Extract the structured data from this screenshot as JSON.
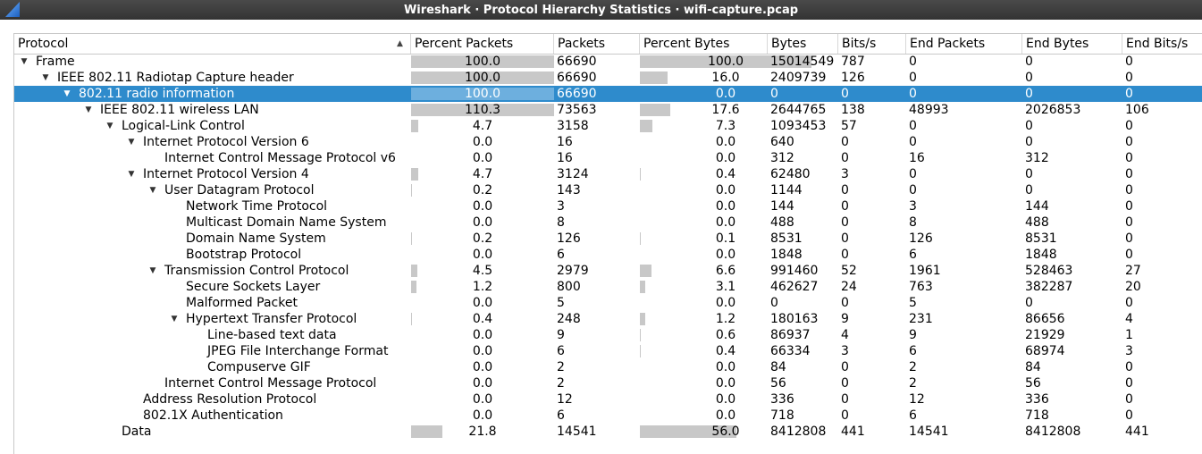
{
  "window": {
    "title": "Wireshark · Protocol Hierarchy Statistics · wifi-capture.pcap"
  },
  "columns": [
    "Protocol",
    "Percent Packets",
    "Packets",
    "Percent Bytes",
    "Bytes",
    "Bits/s",
    "End Packets",
    "End Bytes",
    "End Bits/s"
  ],
  "sort": {
    "column": "Protocol",
    "direction": "ascending"
  },
  "colors": {
    "selection": "#2e8bcc",
    "bar": "#c8c8c8",
    "title_bar": "#3c3c3c"
  },
  "rows": [
    {
      "protocol": "Frame",
      "depth": 0,
      "expander": "▼",
      "percent_packets": "100.0",
      "packets": "66690",
      "percent_bytes": "100.0",
      "bytes": "15014549",
      "bits_s": "787",
      "end_packets": "0",
      "end_bytes": "0",
      "end_bits_s": "0",
      "selected": false
    },
    {
      "protocol": "IEEE 802.11 Radiotap Capture header",
      "depth": 1,
      "expander": "▼",
      "percent_packets": "100.0",
      "packets": "66690",
      "percent_bytes": "16.0",
      "bytes": "2409739",
      "bits_s": "126",
      "end_packets": "0",
      "end_bytes": "0",
      "end_bits_s": "0",
      "selected": false
    },
    {
      "protocol": "802.11 radio information",
      "depth": 2,
      "expander": "▼",
      "percent_packets": "100.0",
      "packets": "66690",
      "percent_bytes": "0.0",
      "bytes": "0",
      "bits_s": "0",
      "end_packets": "0",
      "end_bytes": "0",
      "end_bits_s": "0",
      "selected": true
    },
    {
      "protocol": "IEEE 802.11 wireless LAN",
      "depth": 3,
      "expander": "▼",
      "percent_packets": "110.3",
      "packets": "73563",
      "percent_bytes": "17.6",
      "bytes": "2644765",
      "bits_s": "138",
      "end_packets": "48993",
      "end_bytes": "2026853",
      "end_bits_s": "106",
      "selected": false
    },
    {
      "protocol": "Logical-Link Control",
      "depth": 4,
      "expander": "▼",
      "percent_packets": "4.7",
      "packets": "3158",
      "percent_bytes": "7.3",
      "bytes": "1093453",
      "bits_s": "57",
      "end_packets": "0",
      "end_bytes": "0",
      "end_bits_s": "0",
      "selected": false
    },
    {
      "protocol": "Internet Protocol Version 6",
      "depth": 5,
      "expander": "▼",
      "percent_packets": "0.0",
      "packets": "16",
      "percent_bytes": "0.0",
      "bytes": "640",
      "bits_s": "0",
      "end_packets": "0",
      "end_bytes": "0",
      "end_bits_s": "0",
      "selected": false
    },
    {
      "protocol": "Internet Control Message Protocol v6",
      "depth": 6,
      "expander": "",
      "percent_packets": "0.0",
      "packets": "16",
      "percent_bytes": "0.0",
      "bytes": "312",
      "bits_s": "0",
      "end_packets": "16",
      "end_bytes": "312",
      "end_bits_s": "0",
      "selected": false
    },
    {
      "protocol": "Internet Protocol Version 4",
      "depth": 5,
      "expander": "▼",
      "percent_packets": "4.7",
      "packets": "3124",
      "percent_bytes": "0.4",
      "bytes": "62480",
      "bits_s": "3",
      "end_packets": "0",
      "end_bytes": "0",
      "end_bits_s": "0",
      "selected": false
    },
    {
      "protocol": "User Datagram Protocol",
      "depth": 6,
      "expander": "▼",
      "percent_packets": "0.2",
      "packets": "143",
      "percent_bytes": "0.0",
      "bytes": "1144",
      "bits_s": "0",
      "end_packets": "0",
      "end_bytes": "0",
      "end_bits_s": "0",
      "selected": false
    },
    {
      "protocol": "Network Time Protocol",
      "depth": 7,
      "expander": "",
      "percent_packets": "0.0",
      "packets": "3",
      "percent_bytes": "0.0",
      "bytes": "144",
      "bits_s": "0",
      "end_packets": "3",
      "end_bytes": "144",
      "end_bits_s": "0",
      "selected": false
    },
    {
      "protocol": "Multicast Domain Name System",
      "depth": 7,
      "expander": "",
      "percent_packets": "0.0",
      "packets": "8",
      "percent_bytes": "0.0",
      "bytes": "488",
      "bits_s": "0",
      "end_packets": "8",
      "end_bytes": "488",
      "end_bits_s": "0",
      "selected": false
    },
    {
      "protocol": "Domain Name System",
      "depth": 7,
      "expander": "",
      "percent_packets": "0.2",
      "packets": "126",
      "percent_bytes": "0.1",
      "bytes": "8531",
      "bits_s": "0",
      "end_packets": "126",
      "end_bytes": "8531",
      "end_bits_s": "0",
      "selected": false
    },
    {
      "protocol": "Bootstrap Protocol",
      "depth": 7,
      "expander": "",
      "percent_packets": "0.0",
      "packets": "6",
      "percent_bytes": "0.0",
      "bytes": "1848",
      "bits_s": "0",
      "end_packets": "6",
      "end_bytes": "1848",
      "end_bits_s": "0",
      "selected": false
    },
    {
      "protocol": "Transmission Control Protocol",
      "depth": 6,
      "expander": "▼",
      "percent_packets": "4.5",
      "packets": "2979",
      "percent_bytes": "6.6",
      "bytes": "991460",
      "bits_s": "52",
      "end_packets": "1961",
      "end_bytes": "528463",
      "end_bits_s": "27",
      "selected": false
    },
    {
      "protocol": "Secure Sockets Layer",
      "depth": 7,
      "expander": "",
      "percent_packets": "1.2",
      "packets": "800",
      "percent_bytes": "3.1",
      "bytes": "462627",
      "bits_s": "24",
      "end_packets": "763",
      "end_bytes": "382287",
      "end_bits_s": "20",
      "selected": false
    },
    {
      "protocol": "Malformed Packet",
      "depth": 7,
      "expander": "",
      "percent_packets": "0.0",
      "packets": "5",
      "percent_bytes": "0.0",
      "bytes": "0",
      "bits_s": "0",
      "end_packets": "5",
      "end_bytes": "0",
      "end_bits_s": "0",
      "selected": false
    },
    {
      "protocol": "Hypertext Transfer Protocol",
      "depth": 7,
      "expander": "▼",
      "percent_packets": "0.4",
      "packets": "248",
      "percent_bytes": "1.2",
      "bytes": "180163",
      "bits_s": "9",
      "end_packets": "231",
      "end_bytes": "86656",
      "end_bits_s": "4",
      "selected": false
    },
    {
      "protocol": "Line-based text data",
      "depth": 8,
      "expander": "",
      "percent_packets": "0.0",
      "packets": "9",
      "percent_bytes": "0.6",
      "bytes": "86937",
      "bits_s": "4",
      "end_packets": "9",
      "end_bytes": "21929",
      "end_bits_s": "1",
      "selected": false
    },
    {
      "protocol": "JPEG File Interchange Format",
      "depth": 8,
      "expander": "",
      "percent_packets": "0.0",
      "packets": "6",
      "percent_bytes": "0.4",
      "bytes": "66334",
      "bits_s": "3",
      "end_packets": "6",
      "end_bytes": "68974",
      "end_bits_s": "3",
      "selected": false
    },
    {
      "protocol": "Compuserve GIF",
      "depth": 8,
      "expander": "",
      "percent_packets": "0.0",
      "packets": "2",
      "percent_bytes": "0.0",
      "bytes": "84",
      "bits_s": "0",
      "end_packets": "2",
      "end_bytes": "84",
      "end_bits_s": "0",
      "selected": false
    },
    {
      "protocol": "Internet Control Message Protocol",
      "depth": 6,
      "expander": "",
      "percent_packets": "0.0",
      "packets": "2",
      "percent_bytes": "0.0",
      "bytes": "56",
      "bits_s": "0",
      "end_packets": "2",
      "end_bytes": "56",
      "end_bits_s": "0",
      "selected": false
    },
    {
      "protocol": "Address Resolution Protocol",
      "depth": 5,
      "expander": "",
      "percent_packets": "0.0",
      "packets": "12",
      "percent_bytes": "0.0",
      "bytes": "336",
      "bits_s": "0",
      "end_packets": "12",
      "end_bytes": "336",
      "end_bits_s": "0",
      "selected": false
    },
    {
      "protocol": "802.1X Authentication",
      "depth": 5,
      "expander": "",
      "percent_packets": "0.0",
      "packets": "6",
      "percent_bytes": "0.0",
      "bytes": "718",
      "bits_s": "0",
      "end_packets": "6",
      "end_bytes": "718",
      "end_bits_s": "0",
      "selected": false
    },
    {
      "protocol": "Data",
      "depth": 4,
      "expander": "",
      "percent_packets": "21.8",
      "packets": "14541",
      "percent_bytes": "56.0",
      "bytes": "8412808",
      "bits_s": "441",
      "end_packets": "14541",
      "end_bytes": "8412808",
      "end_bits_s": "441",
      "selected": false
    }
  ]
}
